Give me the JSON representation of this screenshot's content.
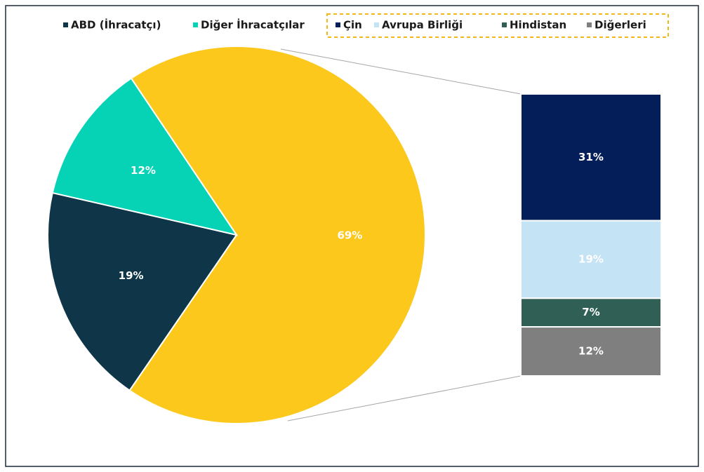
{
  "chart_data": {
    "type": "bar-of-pie",
    "pie": {
      "categories": [
        "ABD (İhracatçı)",
        "Diğer İhracatçılar",
        null
      ],
      "values": [
        19,
        12,
        69
      ],
      "value_labels": [
        "19%",
        "12%",
        "69%"
      ],
      "colors": [
        "#0e3648",
        "#06d2b5",
        "#fcc81c"
      ]
    },
    "stack": {
      "categories": [
        "Çin",
        "Avrupa Birliği",
        "Hindistan",
        "Diğerleri"
      ],
      "values": [
        31,
        19,
        7,
        12
      ],
      "value_labels": [
        "31%",
        "19%",
        "7%",
        "12%"
      ],
      "colors": [
        "#041e5a",
        "#c4e3f4",
        "#2f5f55",
        "#7f7f7f"
      ]
    }
  }
}
